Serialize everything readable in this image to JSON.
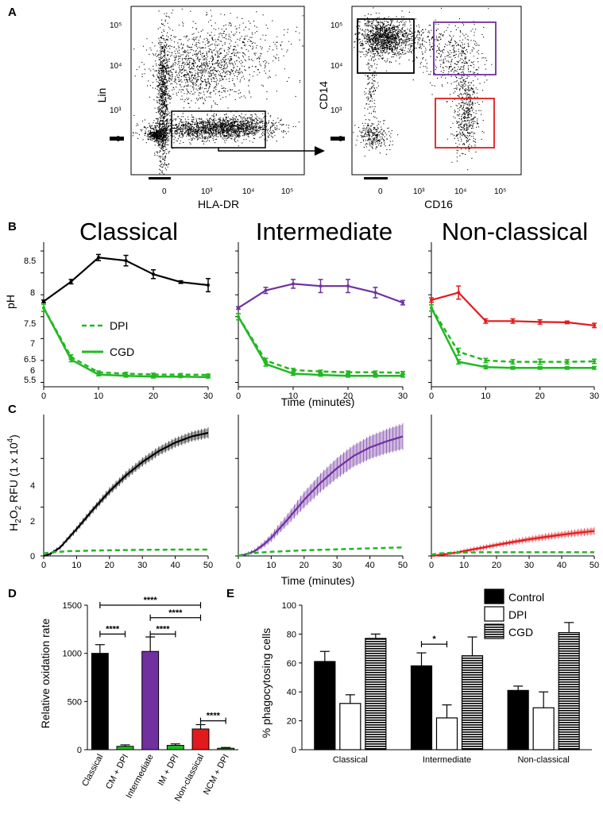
{
  "panels": {
    "a": "A",
    "b": "B",
    "c": "C",
    "d": "D",
    "e": "E"
  },
  "colors": {
    "classical": "#000000",
    "intermediate": "#7030a0",
    "nonclassical": "#e31a1c",
    "inhibitor": "#22b822",
    "gate_black": "#000000",
    "gate_purple": "#7030a0",
    "gate_red": "#e31a1c"
  },
  "flow": {
    "left": {
      "ylabel": "Lin",
      "xlabel": "HLA-DR",
      "yticks": [
        "10⁵",
        "10⁴",
        "10³",
        "0"
      ],
      "xticks": [
        "0",
        "10³",
        "10⁴",
        "10⁵"
      ]
    },
    "right": {
      "ylabel": "CD14",
      "xlabel": "CD16",
      "yticks": [
        "10⁵",
        "10⁴",
        "10³",
        "0"
      ],
      "xticks": [
        "0",
        "10³",
        "10⁴",
        "10⁵"
      ]
    }
  },
  "row_b": {
    "titles": [
      "Classical",
      "Intermediate",
      "Non-classical"
    ],
    "ylabel": "pH",
    "xlabel": "Time (minutes)",
    "yticks": [
      "8.5",
      "8",
      "7.5",
      "7",
      "6.5",
      "6",
      "5.5"
    ],
    "xticks": [
      "0",
      "10",
      "20",
      "30"
    ],
    "legend": {
      "dpi": "DPI",
      "cgd": "CGD"
    }
  },
  "row_c": {
    "ylabel_main": "H",
    "ylabel_sub2": "2",
    "ylabel_o": "O",
    "ylabel_rest": " RFU (1 x 10",
    "ylabel_exp": "4",
    "ylabel_close": ")",
    "xlabel": "Time (minutes)",
    "yticks": [
      "4",
      "2",
      "0"
    ],
    "xticks": [
      "0",
      "10",
      "20",
      "30",
      "40",
      "50"
    ]
  },
  "panel_d": {
    "ylabel": "Relative oxidation rate",
    "yticks": [
      "1500",
      "1000",
      "500",
      "0"
    ],
    "categories": [
      "Classical",
      "CM + DPI",
      "Intermediate",
      "IM + DPI",
      "Non-classical",
      "NCM + DPI"
    ],
    "sig": [
      "****",
      "****",
      "****",
      "****",
      "****"
    ]
  },
  "panel_e": {
    "ylabel": "% phagocytosing cells",
    "yticks": [
      "100",
      "80",
      "60",
      "40",
      "20",
      "0"
    ],
    "groups": [
      "Classical",
      "Intermediate",
      "Non-classical"
    ],
    "legend": [
      "Control",
      "DPI",
      "CGD"
    ],
    "sig": "*"
  },
  "chart_data": [
    {
      "type": "line",
      "title": "Classical",
      "xlabel": "",
      "ylabel": "pH",
      "xlim": [
        0,
        30
      ],
      "ylim": [
        5.4,
        8.7
      ],
      "x": [
        0,
        5,
        10,
        15,
        20,
        25,
        30
      ],
      "series": [
        {
          "name": "Control",
          "values": [
            7.35,
            7.8,
            8.35,
            8.28,
            7.97,
            7.79,
            7.72
          ],
          "err": [
            0.03,
            0.05,
            0.07,
            0.12,
            0.1,
            0.03,
            0.15
          ]
        },
        {
          "name": "DPI",
          "values": [
            7.2,
            6.08,
            5.73,
            5.7,
            5.68,
            5.68,
            5.67
          ],
          "err": [
            0.08,
            0.05,
            0.03,
            0.03,
            0.03,
            0.02,
            0.02
          ]
        },
        {
          "name": "CGD",
          "values": [
            7.2,
            6.02,
            5.68,
            5.65,
            5.63,
            5.63,
            5.62
          ],
          "err": [
            0.08,
            0.05,
            0.03,
            0.03,
            0.03,
            0.02,
            0.02
          ]
        }
      ]
    },
    {
      "type": "line",
      "title": "Intermediate",
      "xlabel": "Time (minutes)",
      "ylabel": "",
      "xlim": [
        0,
        30
      ],
      "ylim": [
        5.4,
        8.7
      ],
      "x": [
        0,
        5,
        10,
        15,
        20,
        25,
        30
      ],
      "series": [
        {
          "name": "Control",
          "values": [
            7.2,
            7.6,
            7.75,
            7.7,
            7.7,
            7.55,
            7.32
          ],
          "err": [
            0.03,
            0.07,
            0.1,
            0.15,
            0.15,
            0.12,
            0.05
          ]
        },
        {
          "name": "DPI",
          "values": [
            7.0,
            6.0,
            5.78,
            5.75,
            5.73,
            5.73,
            5.72
          ],
          "err": [
            0.07,
            0.05,
            0.04,
            0.03,
            0.03,
            0.03,
            0.03
          ]
        },
        {
          "name": "CGD",
          "values": [
            7.0,
            5.92,
            5.7,
            5.67,
            5.65,
            5.65,
            5.65
          ],
          "err": [
            0.07,
            0.05,
            0.04,
            0.03,
            0.03,
            0.03,
            0.03
          ]
        }
      ]
    },
    {
      "type": "line",
      "title": "Non-classical",
      "xlabel": "",
      "ylabel": "",
      "xlim": [
        0,
        30
      ],
      "ylim": [
        5.4,
        8.7
      ],
      "x": [
        0,
        5,
        10,
        15,
        20,
        25,
        30
      ],
      "series": [
        {
          "name": "Control",
          "values": [
            7.38,
            7.55,
            6.9,
            6.9,
            6.88,
            6.87,
            6.8
          ],
          "err": [
            0.05,
            0.15,
            0.05,
            0.05,
            0.05,
            0.03,
            0.05
          ]
        },
        {
          "name": "DPI",
          "values": [
            7.2,
            6.2,
            6.0,
            5.97,
            5.97,
            5.97,
            5.98
          ],
          "err": [
            0.07,
            0.08,
            0.05,
            0.05,
            0.06,
            0.05,
            0.05
          ]
        },
        {
          "name": "CGD",
          "values": [
            7.2,
            5.97,
            5.85,
            5.83,
            5.83,
            5.83,
            5.83
          ],
          "err": [
            0.07,
            0.05,
            0.04,
            0.03,
            0.03,
            0.03,
            0.03
          ]
        }
      ]
    },
    {
      "type": "line",
      "title": "Classical H2O2",
      "xlabel": "",
      "ylabel": "H2O2 RFU (1 x 10^4)",
      "xlim": [
        0,
        50
      ],
      "ylim": [
        0,
        5.8
      ],
      "x": [
        0,
        2,
        5,
        8,
        10,
        15,
        20,
        25,
        30,
        35,
        40,
        45,
        50
      ],
      "series": [
        {
          "name": "Control",
          "values": [
            0,
            0.08,
            0.35,
            0.8,
            1.1,
            1.9,
            2.65,
            3.3,
            3.85,
            4.3,
            4.65,
            4.9,
            5.05
          ],
          "err": [
            0,
            0.02,
            0.05,
            0.07,
            0.08,
            0.1,
            0.12,
            0.13,
            0.14,
            0.15,
            0.16,
            0.17,
            0.18
          ]
        },
        {
          "name": "DPI",
          "values": [
            0.1,
            0.15,
            0.17,
            0.2,
            0.2,
            0.22,
            0.23,
            0.24,
            0.25,
            0.25,
            0.26,
            0.26,
            0.26
          ]
        }
      ]
    },
    {
      "type": "line",
      "title": "Intermediate H2O2",
      "xlabel": "Time (minutes)",
      "ylabel": "",
      "xlim": [
        0,
        50
      ],
      "ylim": [
        0,
        5.8
      ],
      "x": [
        0,
        2,
        5,
        8,
        10,
        15,
        20,
        25,
        30,
        35,
        40,
        45,
        50
      ],
      "series": [
        {
          "name": "Control",
          "values": [
            0,
            0.05,
            0.2,
            0.5,
            0.75,
            1.5,
            2.3,
            3.0,
            3.6,
            4.1,
            4.45,
            4.7,
            4.9
          ],
          "err": [
            0,
            0.03,
            0.06,
            0.1,
            0.13,
            0.2,
            0.3,
            0.35,
            0.4,
            0.42,
            0.45,
            0.47,
            0.5
          ]
        },
        {
          "name": "DPI",
          "values": [
            0,
            0.08,
            0.12,
            0.15,
            0.17,
            0.2,
            0.23,
            0.25,
            0.27,
            0.29,
            0.31,
            0.33,
            0.35
          ]
        }
      ]
    },
    {
      "type": "line",
      "title": "Non-classical H2O2",
      "xlabel": "",
      "ylabel": "",
      "xlim": [
        0,
        50
      ],
      "ylim": [
        0,
        5.8
      ],
      "x": [
        0,
        2,
        5,
        8,
        10,
        15,
        20,
        25,
        30,
        35,
        40,
        45,
        50
      ],
      "series": [
        {
          "name": "Control",
          "values": [
            0,
            0.03,
            0.08,
            0.15,
            0.2,
            0.32,
            0.45,
            0.57,
            0.68,
            0.78,
            0.87,
            0.95,
            1.02
          ],
          "err": [
            0,
            0.02,
            0.03,
            0.04,
            0.05,
            0.06,
            0.07,
            0.08,
            0.09,
            0.1,
            0.1,
            0.11,
            0.12
          ]
        },
        {
          "name": "DPI",
          "values": [
            0.05,
            0.1,
            0.12,
            0.13,
            0.14,
            0.15,
            0.15,
            0.15,
            0.15,
            0.15,
            0.15,
            0.15,
            0.15
          ]
        }
      ]
    },
    {
      "type": "bar",
      "title": "",
      "xlabel": "",
      "ylabel": "Relative oxidation rate",
      "ylim": [
        0,
        1500
      ],
      "categories": [
        "Classical",
        "CM + DPI",
        "Intermediate",
        "IM + DPI",
        "Non-classical",
        "NCM + DPI"
      ],
      "values": [
        1000,
        35,
        1020,
        45,
        215,
        15
      ],
      "err": [
        90,
        15,
        150,
        15,
        45,
        8
      ],
      "colors": [
        "#000000",
        "#22b822",
        "#7030a0",
        "#22b822",
        "#e31a1c",
        "#22b822"
      ],
      "significance": [
        {
          "from": "Classical",
          "to": "CM + DPI",
          "label": "****",
          "y": 1200
        },
        {
          "from": "Intermediate",
          "to": "IM + DPI",
          "label": "****",
          "y": 1200
        },
        {
          "from": "Intermediate",
          "to": "Non-classical",
          "label": "****",
          "y": 1370
        },
        {
          "from": "Classical",
          "to": "Non-classical",
          "label": "****",
          "y": 1500
        },
        {
          "from": "Non-classical",
          "to": "NCM + DPI",
          "label": "****",
          "y": 300
        }
      ]
    },
    {
      "type": "bar",
      "title": "",
      "xlabel": "",
      "ylabel": "% phagocytosing cells",
      "ylim": [
        0,
        100
      ],
      "categories": [
        "Classical",
        "Intermediate",
        "Non-classical"
      ],
      "series": [
        {
          "name": "Control",
          "values": [
            61,
            58,
            41
          ],
          "err": [
            7,
            9,
            3
          ]
        },
        {
          "name": "DPI",
          "values": [
            32,
            22,
            29
          ],
          "err": [
            6,
            9,
            11
          ]
        },
        {
          "name": "CGD",
          "values": [
            77,
            65,
            81
          ],
          "err": [
            3,
            13,
            7
          ]
        }
      ],
      "significance": [
        {
          "group": "Intermediate",
          "from": "Control",
          "to": "DPI",
          "label": "*",
          "y": 73
        }
      ]
    }
  ]
}
